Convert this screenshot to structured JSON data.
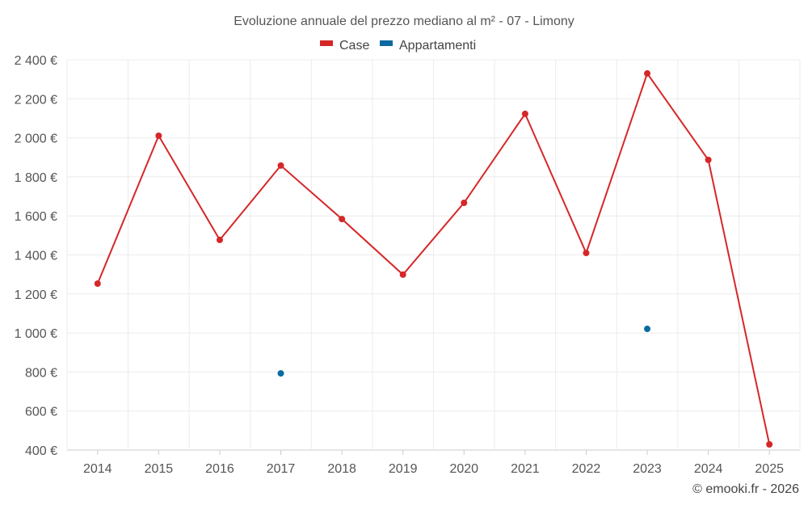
{
  "chart_data": {
    "type": "line",
    "title": "Evoluzione annuale del prezzo mediano al m² - 07 - Limony",
    "xlabel": "",
    "ylabel": "",
    "x": [
      "2014",
      "2015",
      "2016",
      "2017",
      "2018",
      "2019",
      "2020",
      "2021",
      "2022",
      "2023",
      "2024",
      "2025"
    ],
    "ylim": [
      400,
      2400
    ],
    "yticks": [
      400,
      600,
      800,
      1000,
      1200,
      1400,
      1600,
      1800,
      2000,
      2200,
      2400
    ],
    "ytick_labels": [
      "400 €",
      "600 €",
      "800 €",
      "1 000 €",
      "1 200 €",
      "1 400 €",
      "1 600 €",
      "1 800 €",
      "2 000 €",
      "2 200 €",
      "2 400 €"
    ],
    "grid": true,
    "legend_position": "top-center",
    "series": [
      {
        "name": "Case",
        "color": "#d62728",
        "values": [
          1253,
          2011,
          1477,
          1858,
          1584,
          1299,
          1667,
          2123,
          1410,
          2330,
          1887,
          429
        ]
      },
      {
        "name": "Appartamenti",
        "color": "#0a6aa1",
        "values": [
          null,
          null,
          null,
          793,
          null,
          null,
          null,
          null,
          null,
          1021,
          null,
          null
        ]
      }
    ],
    "credit": "© emooki.fr - 2026"
  }
}
